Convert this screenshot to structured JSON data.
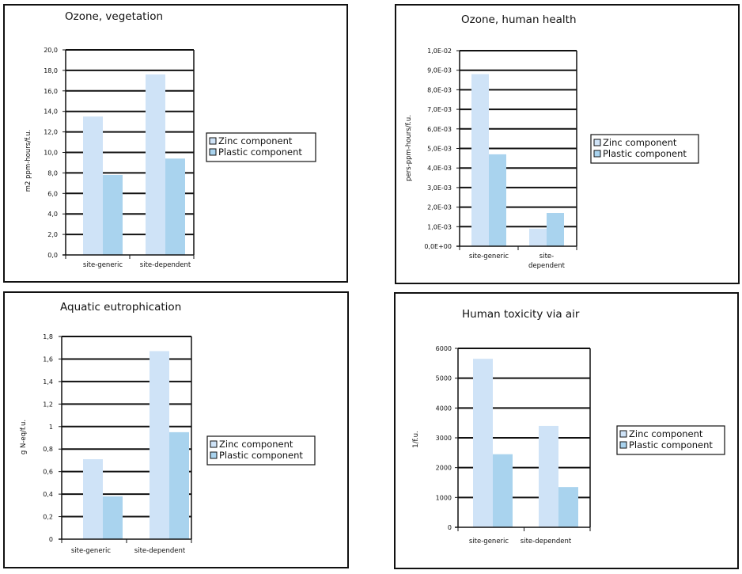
{
  "colors": {
    "zinc": "#cfe3f7",
    "plastic": "#a9d3ee",
    "grid": "#111111"
  },
  "chart_data": [
    {
      "type": "bar",
      "title": "Ozone, vegetation",
      "ylabel": "m2 ppm-hours/f.u.",
      "categories": [
        "site-generic",
        "site-dependent"
      ],
      "series": [
        {
          "name": "Zinc component",
          "values": [
            13.5,
            17.6
          ]
        },
        {
          "name": "Plastic component",
          "values": [
            7.8,
            9.4
          ]
        }
      ],
      "ylim": [
        0,
        20
      ],
      "yticks": [
        "0,0",
        "2,0",
        "4,0",
        "6,0",
        "8,0",
        "10,0",
        "12,0",
        "14,0",
        "16,0",
        "18,0",
        "20,0"
      ],
      "grid": true,
      "legend": "right"
    },
    {
      "type": "bar",
      "title": "Ozone, human health",
      "ylabel": "pers-ppm-hours/f.u.",
      "categories": [
        "site-generic",
        "site-dependent"
      ],
      "series": [
        {
          "name": "Zinc component",
          "values": [
            0.0088,
            0.0009
          ]
        },
        {
          "name": "Plastic component",
          "values": [
            0.0047,
            0.0017
          ]
        }
      ],
      "ylim": [
        0,
        0.01
      ],
      "yticks": [
        "0,0E+00",
        "1,0E-03",
        "2,0E-03",
        "3,0E-03",
        "4,0E-03",
        "5,0E-03",
        "6,0E-03",
        "7,0E-03",
        "8,0E-03",
        "9,0E-03",
        "1,0E-02"
      ],
      "grid": true,
      "legend": "right"
    },
    {
      "type": "bar",
      "title": "Aquatic eutrophication",
      "ylabel": "g N-eq/f.u.",
      "categories": [
        "site-generic",
        "site-dependent"
      ],
      "series": [
        {
          "name": "Zinc component",
          "values": [
            0.71,
            1.67
          ]
        },
        {
          "name": "Plastic component",
          "values": [
            0.38,
            0.95
          ]
        }
      ],
      "ylim": [
        0,
        1.8
      ],
      "yticks": [
        "0",
        "0,2",
        "0,4",
        "0,6",
        "0,8",
        "1",
        "1,2",
        "1,4",
        "1,6",
        "1,8"
      ],
      "grid": true,
      "legend": "right"
    },
    {
      "type": "bar",
      "title": "Human toxicity via air",
      "ylabel": "1/f.u.",
      "categories": [
        "site-generic",
        "site-dependent"
      ],
      "series": [
        {
          "name": "Zinc component",
          "values": [
            5650,
            3400
          ]
        },
        {
          "name": "Plastic component",
          "values": [
            2450,
            1350
          ]
        }
      ],
      "ylim": [
        0,
        6000
      ],
      "yticks": [
        "0",
        "1000",
        "2000",
        "3000",
        "4000",
        "5000",
        "6000"
      ],
      "grid": true,
      "legend": "right"
    }
  ]
}
